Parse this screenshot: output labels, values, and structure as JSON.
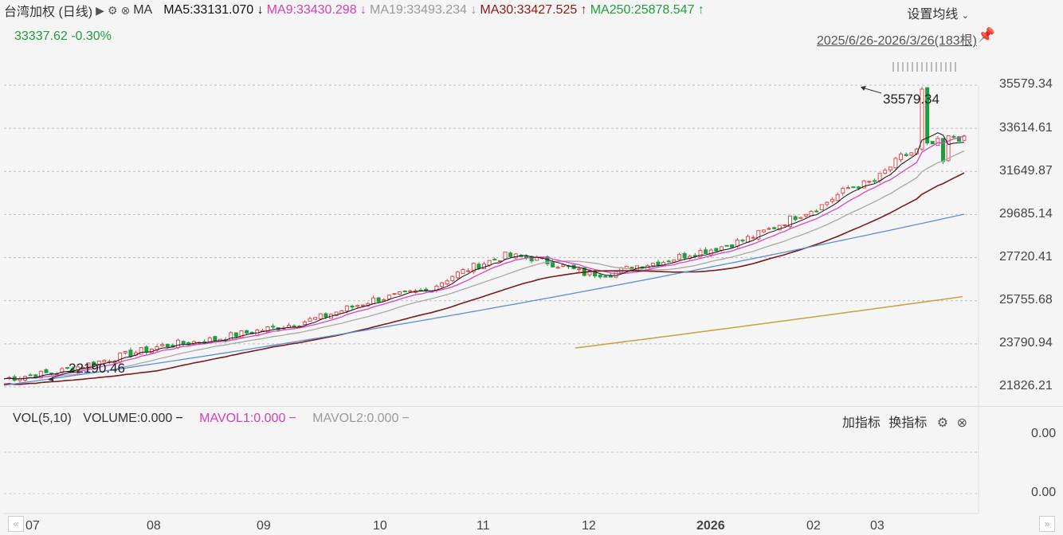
{
  "header": {
    "title": "台湾加权 (日线)",
    "ma_label": "MA",
    "ma5": "MA5:33131.070 ↓",
    "ma9": "MA9:33430.298 ↓",
    "ma19": "MA19:33493.234 ↓",
    "ma30": "MA30:33427.525 ↑",
    "ma250": "MA250:25878.547 ↑",
    "settings": "设置均线",
    "price": "33337.62",
    "change": "-0.30%",
    "range": "2025/6/26-2026/3/26(183根)"
  },
  "volume": {
    "vol": "VOL(5,10)",
    "volume": "VOLUME:0.000",
    "mavol1": "MAVOL1:0.000",
    "mavol2": "MAVOL2:0.000",
    "add": "加指标",
    "switch": "换指标"
  },
  "colors": {
    "up": "#e04a4a",
    "down": "#1f9e3e",
    "ma5": "#111111",
    "ma9": "#e040c8",
    "ma19": "#a8a8a8",
    "ma30": "#7a1a1a",
    "ma250": "#5b8fd6",
    "ma_long": "#c9a040",
    "text_green": "#1f9e3e",
    "text_pink": "#d43fb8",
    "text_red": "#8b1a1a"
  },
  "chart_data": {
    "type": "candlestick",
    "y_ticks": [
      "35579.34",
      "33614.61",
      "31649.87",
      "29685.14",
      "27720.41",
      "25755.68",
      "23790.94",
      "21826.21"
    ],
    "vol_ticks": [
      "0.00",
      "0.00"
    ],
    "x_ticks": [
      "07",
      "08",
      "09",
      "10",
      "11",
      "12",
      "2026",
      "02",
      "03"
    ],
    "annotations": {
      "high": "35579.34",
      "low": "22190.46"
    },
    "ylim": [
      21826.21,
      35579.34
    ],
    "series": {
      "ma5": [
        [
          0,
          22200
        ],
        [
          10,
          22500
        ],
        [
          20,
          23100
        ],
        [
          30,
          23700
        ],
        [
          40,
          24000
        ],
        [
          45,
          24250
        ],
        [
          55,
          24700
        ],
        [
          60,
          25000
        ],
        [
          70,
          25800
        ],
        [
          80,
          26200
        ],
        [
          85,
          26900
        ],
        [
          90,
          27400
        ],
        [
          95,
          27800
        ],
        [
          100,
          27700
        ],
        [
          105,
          27400
        ],
        [
          110,
          27000
        ],
        [
          115,
          27000
        ],
        [
          120,
          27350
        ],
        [
          125,
          27550
        ],
        [
          130,
          27900
        ],
        [
          135,
          28150
        ],
        [
          140,
          28500
        ],
        [
          145,
          29000
        ],
        [
          150,
          29600
        ],
        [
          155,
          30100
        ],
        [
          160,
          30900
        ],
        [
          165,
          31200
        ],
        [
          170,
          32300
        ],
        [
          175,
          32800
        ],
        [
          180,
          33250
        ],
        [
          182,
          33100
        ]
      ]
    }
  }
}
